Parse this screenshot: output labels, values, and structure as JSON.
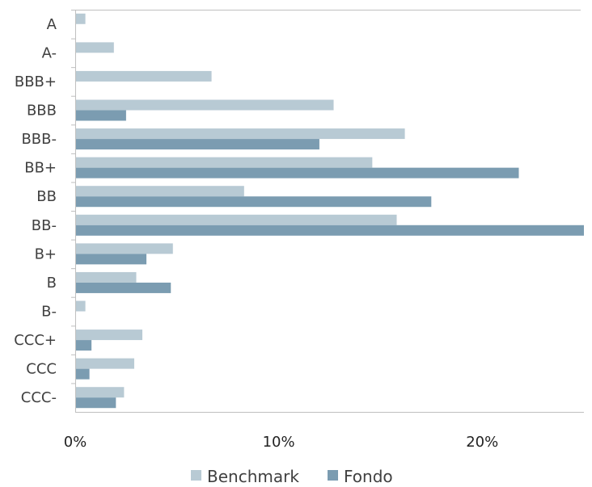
{
  "chart_data": {
    "type": "bar",
    "orientation": "horizontal",
    "categories": [
      "A",
      "A-",
      "BBB+",
      "BBB",
      "BBB-",
      "BB+",
      "BB",
      "BB-",
      "B+",
      "B",
      "B-",
      "CCC+",
      "CCC",
      "CCC-"
    ],
    "series": [
      {
        "name": "Benchmark",
        "color": "#b8cad4",
        "values": [
          0.5,
          1.9,
          6.7,
          12.7,
          16.2,
          14.6,
          8.3,
          15.8,
          4.8,
          3.0,
          0.5,
          3.3,
          2.9,
          2.4
        ]
      },
      {
        "name": "Fondo",
        "color": "#7b9cb1",
        "values": [
          0,
          0,
          0,
          2.5,
          12.0,
          21.8,
          17.5,
          25.0,
          3.5,
          4.7,
          0,
          0.8,
          0.7,
          2.0
        ]
      }
    ],
    "xlim": [
      0,
      25
    ],
    "x_ticks": [
      {
        "value": 0,
        "label": "0%"
      },
      {
        "value": 10,
        "label": "10%"
      },
      {
        "value": 20,
        "label": "20%"
      }
    ],
    "legend": {
      "position": "bottom"
    },
    "grid": false
  }
}
